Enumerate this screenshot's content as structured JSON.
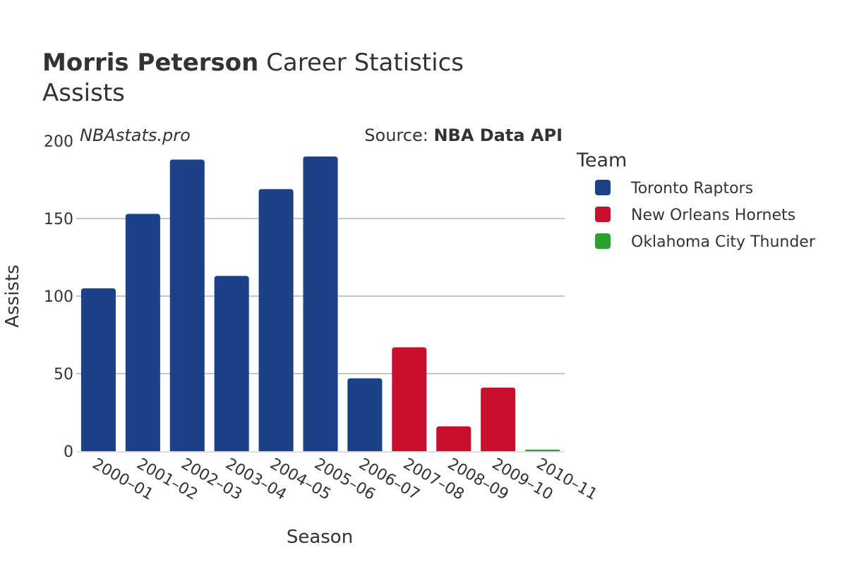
{
  "header": {
    "title_bold": "Morris Peterson",
    "title_rest": " Career Statistics",
    "subtitle": "Assists"
  },
  "watermark": "NBAstats.pro",
  "source": {
    "prefix": "Source: ",
    "name": "NBA Data API"
  },
  "legend": {
    "title": "Team",
    "placement": "right"
  },
  "chart_data": {
    "type": "bar",
    "title": "Morris Peterson Career Statistics",
    "subtitle": "Assists",
    "xlabel": "Season",
    "ylabel": "Assists",
    "ylim": [
      0,
      200
    ],
    "yticks": [
      0,
      50,
      100,
      150,
      200
    ],
    "grid": true,
    "categories": [
      "2000–01",
      "2001–02",
      "2002–03",
      "2003–04",
      "2004–05",
      "2005–06",
      "2006–07",
      "2007–08",
      "2008–09",
      "2009–10",
      "2010–11"
    ],
    "series": [
      {
        "name": "Toronto Raptors",
        "color": "#1c4189",
        "values": [
          105,
          153,
          188,
          113,
          169,
          190,
          47,
          null,
          null,
          null,
          null
        ]
      },
      {
        "name": "New Orleans Hornets",
        "color": "#c8102e",
        "values": [
          null,
          null,
          null,
          null,
          null,
          null,
          null,
          67,
          16,
          41,
          null
        ]
      },
      {
        "name": "Oklahoma City Thunder",
        "color": "#2ca02c",
        "values": [
          null,
          null,
          null,
          null,
          null,
          null,
          null,
          null,
          null,
          null,
          1
        ]
      }
    ]
  }
}
